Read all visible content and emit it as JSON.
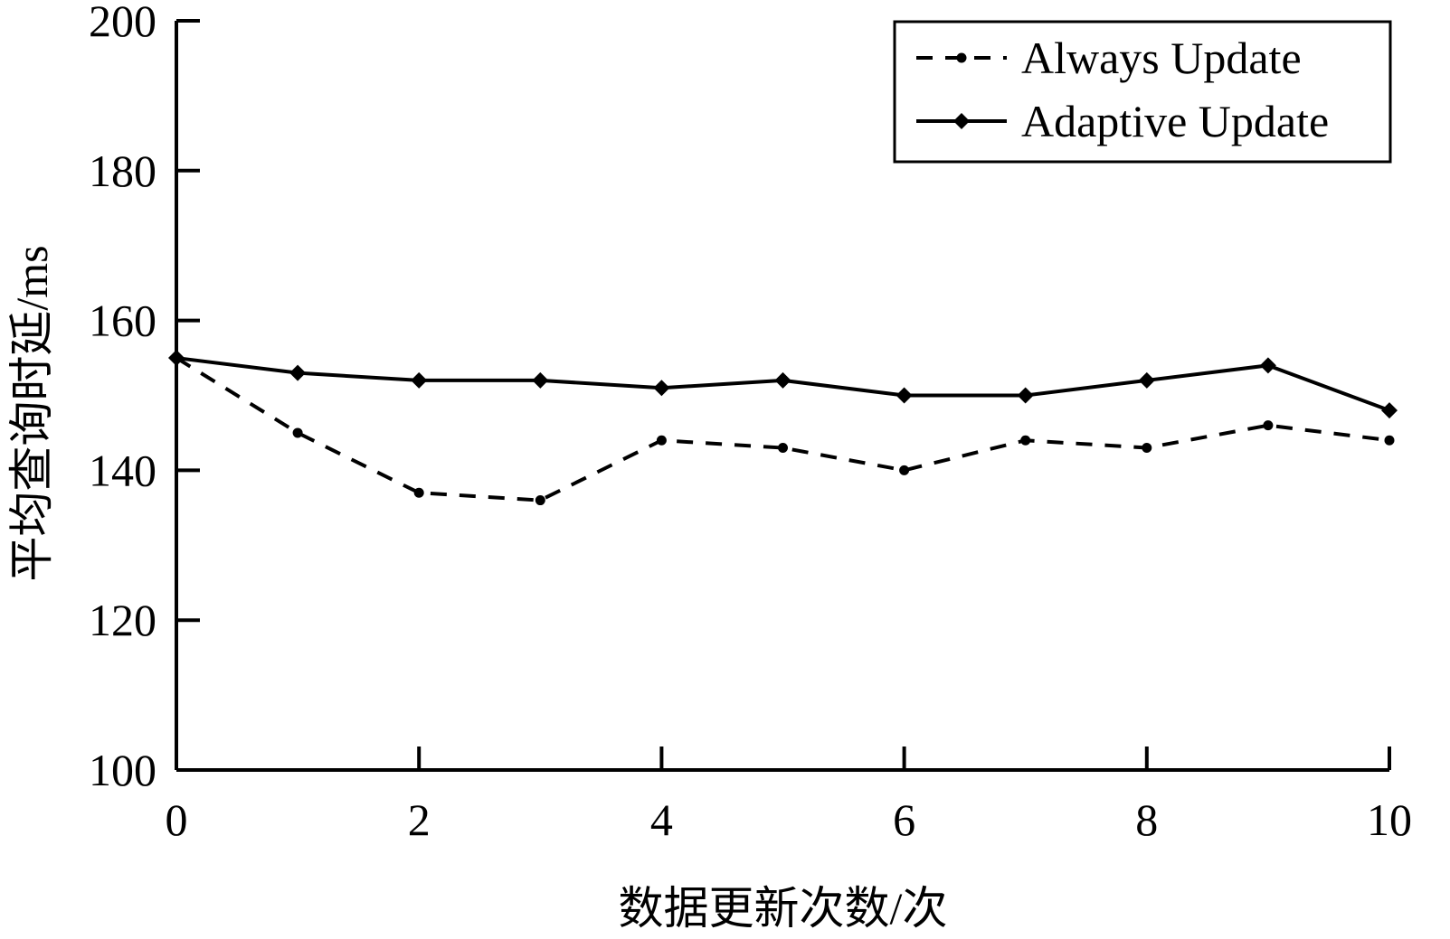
{
  "chart_data": {
    "type": "line",
    "x": [
      0,
      1,
      2,
      3,
      4,
      5,
      6,
      7,
      8,
      9,
      10
    ],
    "series": [
      {
        "name": "Always Update",
        "style": "dashed",
        "marker": "dot",
        "color": "#000000",
        "values": [
          155,
          145,
          137,
          136,
          144,
          143,
          140,
          144,
          143,
          146,
          144
        ]
      },
      {
        "name": "Adaptive Update",
        "style": "solid",
        "marker": "diamond",
        "color": "#000000",
        "values": [
          155,
          153,
          152,
          152,
          151,
          152,
          150,
          150,
          152,
          154,
          148
        ]
      }
    ],
    "xlabel": "数据更新次数/次",
    "ylabel": "平均查询时延/ms",
    "xlim": [
      0,
      10
    ],
    "ylim": [
      100,
      200
    ],
    "xticks": [
      "0",
      "2",
      "4",
      "6",
      "8",
      "10"
    ],
    "yticks": [
      "100",
      "120",
      "140",
      "160",
      "180",
      "200"
    ],
    "grid": false,
    "legend_position": "top-right"
  }
}
